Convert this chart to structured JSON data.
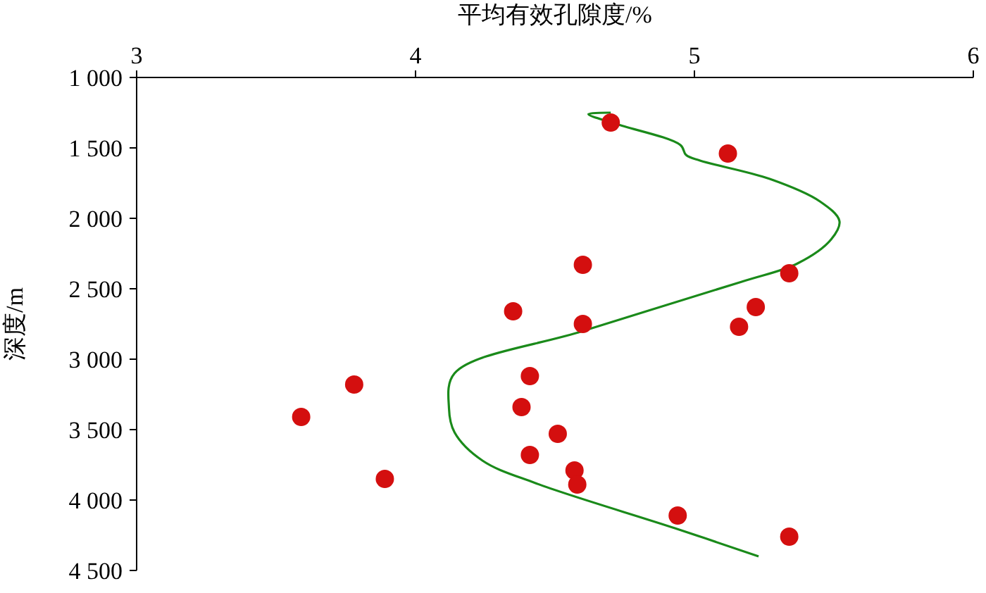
{
  "chart_data": {
    "type": "scatter",
    "xlabel": "平均有效孔隙度/%",
    "ylabel": "深度/m",
    "xlim": [
      3,
      6
    ],
    "xticks": [
      3,
      4,
      5,
      6
    ],
    "ylim": [
      4500,
      1000
    ],
    "yticks": [
      {
        "value": 1000,
        "label": "1 000"
      },
      {
        "value": 1500,
        "label": "1 500"
      },
      {
        "value": 2000,
        "label": "2 000"
      },
      {
        "value": 2500,
        "label": "2 500"
      },
      {
        "value": 3000,
        "label": "3 000"
      },
      {
        "value": 3500,
        "label": "3 500"
      },
      {
        "value": 4000,
        "label": "4 000"
      },
      {
        "value": 4500,
        "label": "4 500"
      }
    ],
    "grid": false,
    "marker": "circle",
    "series": [
      {
        "color": "#d40f0f",
        "x": [
          4.7,
          5.12,
          4.6,
          5.34,
          4.35,
          5.22,
          4.6,
          5.16,
          4.41,
          3.78,
          4.38,
          3.59,
          4.51,
          4.41,
          4.57,
          3.89,
          4.58,
          4.94,
          5.34
        ],
        "values": [
          1320,
          1540,
          2330,
          2390,
          2660,
          2630,
          2750,
          2770,
          3120,
          3180,
          3340,
          3410,
          3530,
          3680,
          3790,
          3850,
          3890,
          4110,
          4260
        ]
      },
      {
        "type": "line",
        "color": "#1a8a1a",
        "marker": "none",
        "x": [
          4.7,
          4.62,
          4.72,
          4.95,
          4.97,
          5.02,
          5.27,
          5.45,
          5.52,
          5.49,
          5.37,
          5.17,
          4.6,
          4.14,
          4.12,
          4.14,
          4.24,
          4.43,
          4.93,
          5.23
        ],
        "values": [
          1250,
          1260,
          1330,
          1480,
          1550,
          1590,
          1720,
          1880,
          2020,
          2150,
          2320,
          2450,
          2800,
          3100,
          3350,
          3520,
          3720,
          3880,
          4200,
          4400
        ]
      }
    ]
  }
}
